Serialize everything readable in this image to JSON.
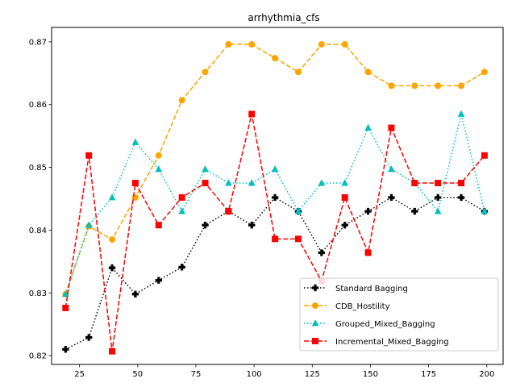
{
  "chart_data": {
    "type": "line",
    "title": "arrhythmia_cfs",
    "xlabel": "",
    "ylabel": "",
    "x": [
      19,
      29,
      39,
      49,
      59,
      69,
      79,
      89,
      99,
      109,
      119,
      129,
      139,
      149,
      159,
      169,
      179,
      189,
      199
    ],
    "xlim": [
      13,
      207
    ],
    "ylim": [
      0.8186,
      0.8723
    ],
    "x_ticks": [
      25,
      50,
      75,
      100,
      125,
      150,
      175,
      200
    ],
    "y_ticks": [
      0.82,
      0.83,
      0.84,
      0.85,
      0.86,
      0.87
    ],
    "x_tick_labels": [
      "25",
      "50",
      "75",
      "100",
      "125",
      "150",
      "175",
      "200"
    ],
    "y_tick_labels": [
      "0.82",
      "0.83",
      "0.84",
      "0.85",
      "0.86",
      "0.87"
    ],
    "grid": false,
    "legend_position": "lower-right",
    "series": [
      {
        "name": "Standard Bagging",
        "color": "#000000",
        "line_style": "dotted",
        "marker": "plus",
        "values": [
          0.821,
          0.8229,
          0.834,
          0.8298,
          0.832,
          0.8341,
          0.8408,
          0.843,
          0.8408,
          0.8452,
          0.843,
          0.8364,
          0.8408,
          0.843,
          0.8452,
          0.843,
          0.8452,
          0.8452,
          0.843
        ]
      },
      {
        "name": "CDB_Hostility",
        "color": "#ffa500",
        "line_style": "dashed",
        "marker": "circle",
        "values": [
          0.8298,
          0.8406,
          0.8385,
          0.8452,
          0.8519,
          0.8607,
          0.8652,
          0.8696,
          0.8696,
          0.8674,
          0.8652,
          0.8696,
          0.8696,
          0.8652,
          0.863,
          0.863,
          0.863,
          0.863,
          0.8652
        ]
      },
      {
        "name": "Grouped_Mixed_Bagging",
        "color": "#00bfbf",
        "line_style": "dotted",
        "marker": "triangle",
        "values": [
          0.8298,
          0.8408,
          0.8452,
          0.854,
          0.8497,
          0.843,
          0.8497,
          0.8475,
          0.8475,
          0.8497,
          0.843,
          0.8475,
          0.8475,
          0.8563,
          0.8497,
          0.8475,
          0.843,
          0.8585,
          0.843
        ]
      },
      {
        "name": "Incremental_Mixed_Bagging",
        "color": "#ff0000",
        "line_style": "dashed",
        "marker": "square",
        "values": [
          0.8276,
          0.8519,
          0.8207,
          0.8475,
          0.8408,
          0.8452,
          0.8475,
          0.843,
          0.8585,
          0.8386,
          0.8386,
          0.8319,
          0.8452,
          0.8364,
          0.8563,
          0.8475,
          0.8475,
          0.8475,
          0.8519
        ]
      }
    ]
  }
}
